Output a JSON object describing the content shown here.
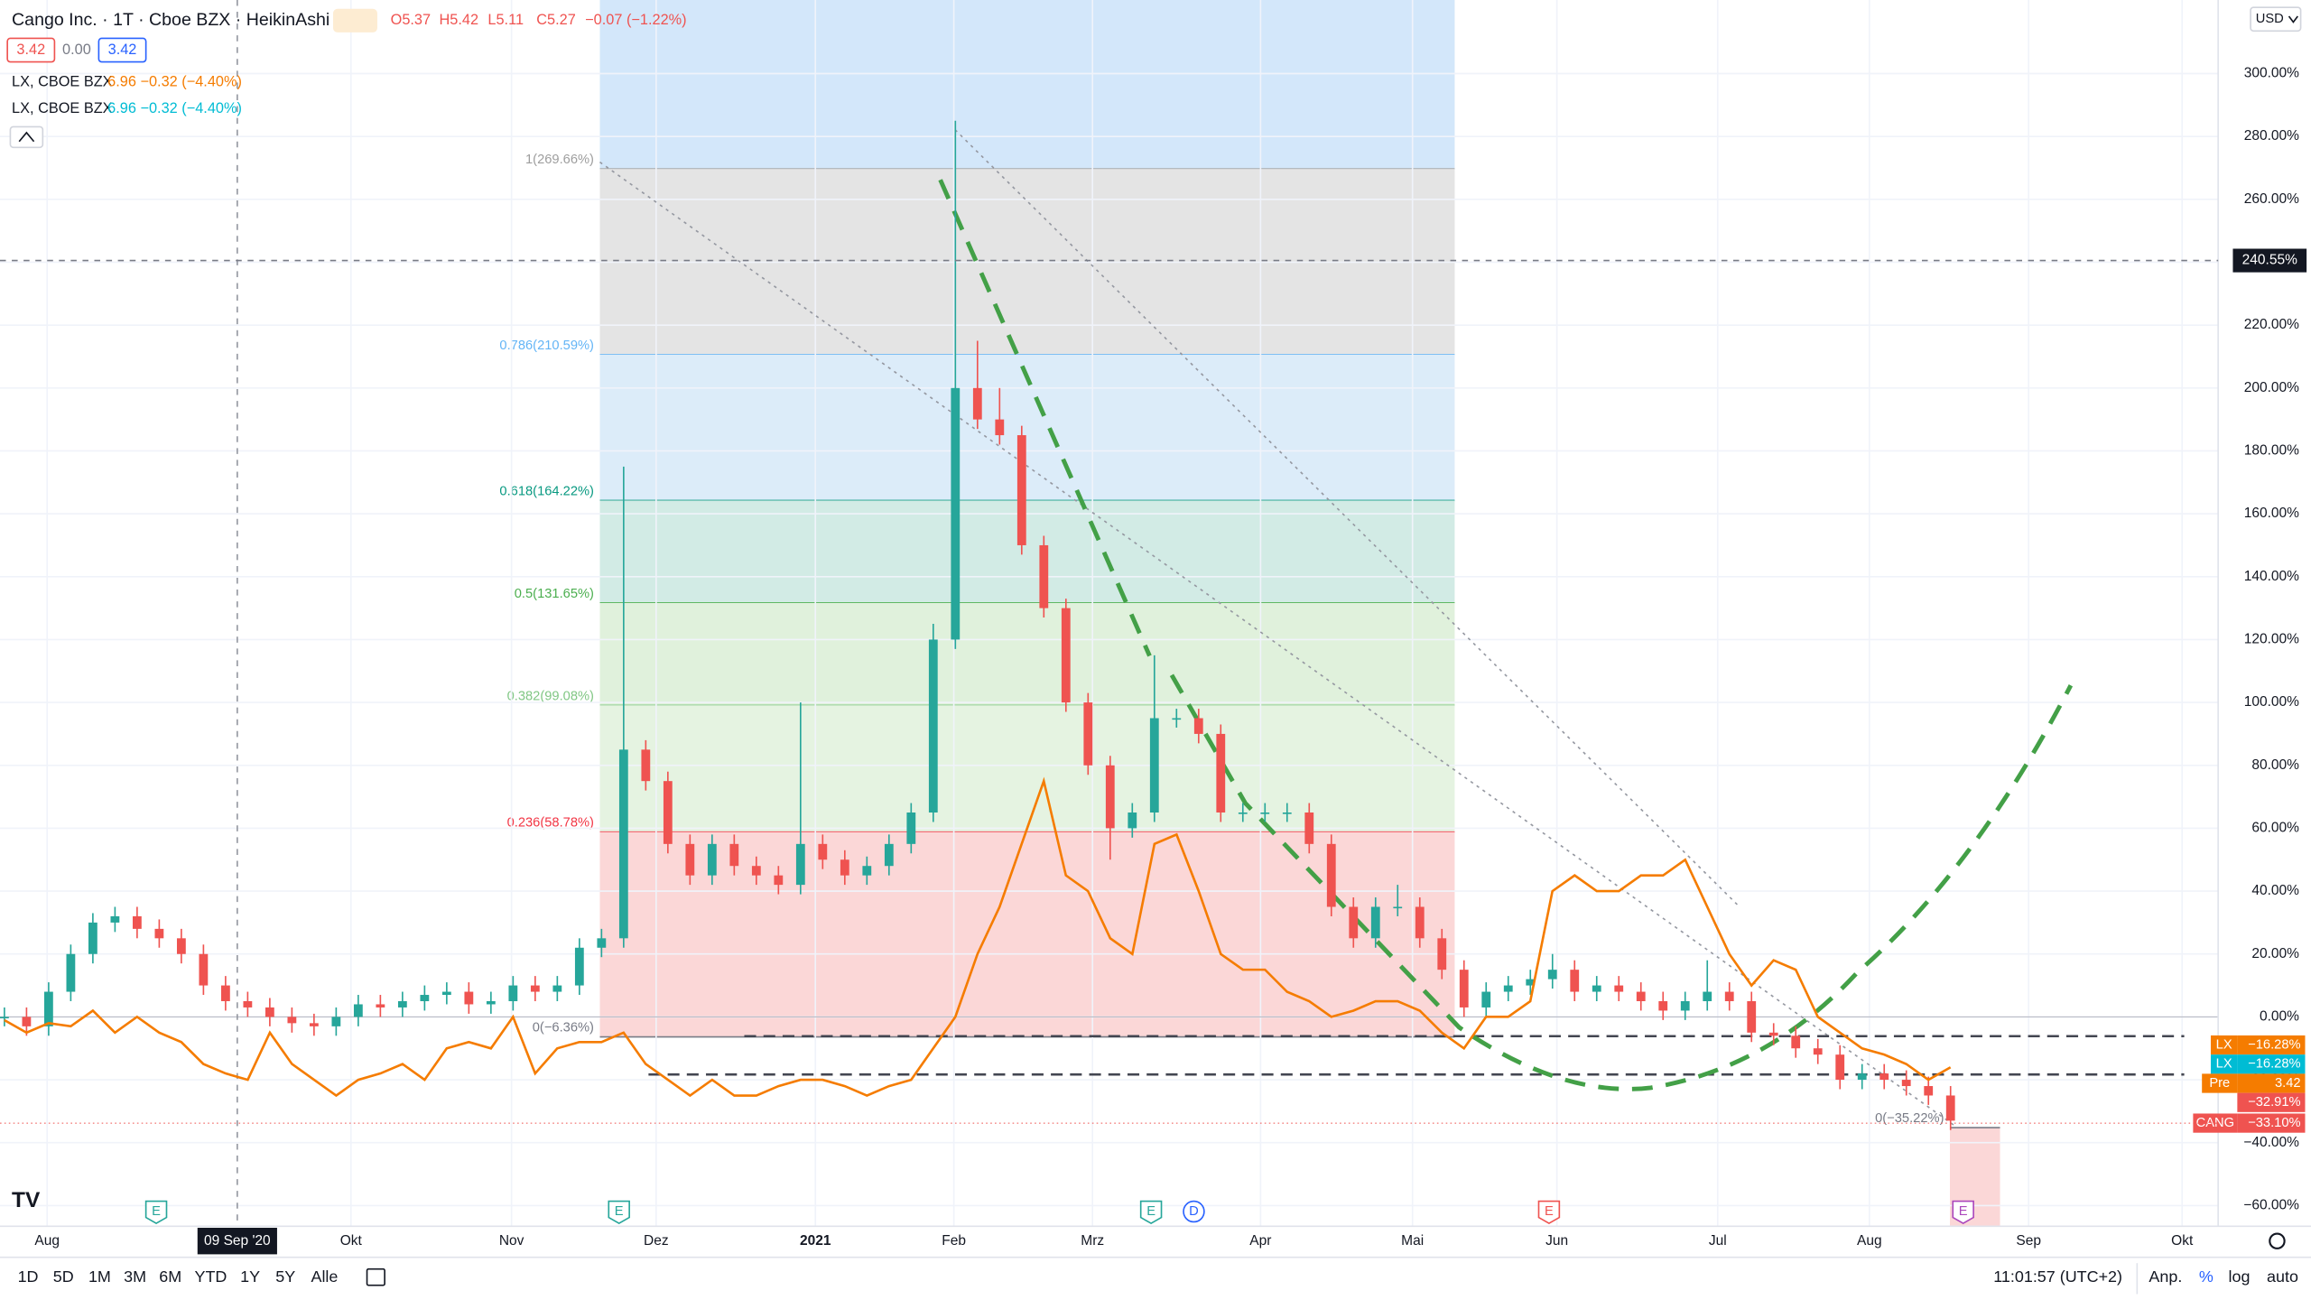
{
  "header": {
    "title": "Cango Inc. · 1T · Cboe BZX · HeikinAshi",
    "ohlc": [
      "O5.37",
      "H5.42",
      "L5.11",
      "C5.27",
      "−0.07 (−1.22%)"
    ],
    "quote": [
      "3.42",
      "0.00",
      "3.42"
    ],
    "compare": [
      {
        "name": "LX, CBOE BZX",
        "text": "6.96 −0.32 (−4.40%)",
        "color": "#f57c00"
      },
      {
        "name": "LX, CBOE BZX",
        "text": "6.96 −0.32 (−4.40%)",
        "color": "#00bcd4"
      }
    ],
    "currency": "USD"
  },
  "chart_data": {
    "type": "candlestick",
    "xlim": [
      -0.2,
      100.1
    ],
    "ylim": [
      -66.6,
      323.4
    ],
    "xticks": [
      {
        "value": 1.93,
        "label": "Aug"
      },
      {
        "value": 15.67,
        "label": "Okt"
      },
      {
        "value": 22.93,
        "label": "Nov"
      },
      {
        "value": 29.47,
        "label": "Dez"
      },
      {
        "value": 36.67,
        "label": "2021"
      },
      {
        "value": 42.93,
        "label": "Feb"
      },
      {
        "value": 49.2,
        "label": "Mrz"
      },
      {
        "value": 56.8,
        "label": "Apr"
      },
      {
        "value": 63.67,
        "label": "Mai"
      },
      {
        "value": 70.2,
        "label": "Jun"
      },
      {
        "value": 77.47,
        "label": "Jul"
      },
      {
        "value": 84.33,
        "label": "Aug"
      },
      {
        "value": 91.53,
        "label": "Sep"
      },
      {
        "value": 98.47,
        "label": "Okt"
      }
    ],
    "yticks": [
      {
        "value": -60,
        "label": "−60.00%"
      },
      {
        "value": -40,
        "label": "−40.00%"
      },
      {
        "value": -20,
        "label": "−20.00%"
      },
      {
        "value": 0,
        "label": "0.00%"
      },
      {
        "value": 20,
        "label": "20.00%"
      },
      {
        "value": 40,
        "label": "40.00%"
      },
      {
        "value": 60,
        "label": "60.00%"
      },
      {
        "value": 80,
        "label": "80.00%"
      },
      {
        "value": 100,
        "label": "100.00%"
      },
      {
        "value": 120,
        "label": "120.00%"
      },
      {
        "value": 140,
        "label": "140.00%"
      },
      {
        "value": 160,
        "label": "160.00%"
      },
      {
        "value": 180,
        "label": "180.00%"
      },
      {
        "value": 200,
        "label": "200.00%"
      },
      {
        "value": 220,
        "label": "220.00%"
      },
      {
        "value": 240,
        "label": "240.00%"
      },
      {
        "value": 260,
        "label": "260.00%"
      },
      {
        "value": 280,
        "label": "280.00%"
      },
      {
        "value": 300,
        "label": "300.00%"
      }
    ],
    "grid": true,
    "series": [
      {
        "name": "CANG",
        "type": "candlestick",
        "up_color": "#26a69a",
        "down_color": "#ef5350",
        "open": [
          0,
          0,
          -3,
          8,
          20,
          30,
          32,
          28,
          25,
          20,
          10,
          5,
          3,
          0,
          -2,
          -3,
          0,
          4,
          3,
          5,
          7,
          8,
          4,
          5,
          10,
          8,
          10,
          22,
          25,
          85,
          75,
          55,
          45,
          55,
          48,
          45,
          42,
          55,
          50,
          45,
          48,
          55,
          65,
          120,
          200,
          190,
          185,
          150,
          130,
          100,
          80,
          60,
          65,
          95,
          95,
          90,
          65,
          65,
          65,
          65,
          55,
          35,
          25,
          35,
          35,
          25,
          15,
          3,
          8,
          10,
          12,
          15,
          8,
          10,
          8,
          5,
          2,
          5,
          8,
          5,
          -5,
          -6,
          -10,
          -12,
          -20,
          -18,
          -20,
          -22,
          -25
        ],
        "high": [
          3,
          3,
          11,
          23,
          33,
          35,
          35,
          31,
          28,
          23,
          13,
          8,
          6,
          3,
          1,
          3,
          7,
          7,
          8,
          10,
          11,
          11,
          8,
          13,
          13,
          13,
          25,
          28,
          175,
          88,
          78,
          58,
          58,
          58,
          51,
          48,
          100,
          58,
          53,
          51,
          58,
          68,
          125,
          285,
          215,
          200,
          188,
          153,
          133,
          103,
          83,
          68,
          115,
          98,
          98,
          93,
          68,
          68,
          68,
          68,
          58,
          38,
          38,
          42,
          38,
          28,
          18,
          11,
          13,
          15,
          20,
          18,
          13,
          13,
          11,
          8,
          8,
          18,
          11,
          8,
          -2,
          -3,
          -7,
          -9,
          -15,
          -15,
          -17,
          -19,
          -22
        ],
        "low": [
          -3,
          -6,
          -6,
          5,
          17,
          27,
          25,
          22,
          17,
          7,
          2,
          0,
          -3,
          -5,
          -6,
          -6,
          -3,
          0,
          0,
          2,
          4,
          1,
          1,
          2,
          5,
          5,
          7,
          19,
          22,
          72,
          52,
          42,
          42,
          45,
          42,
          39,
          39,
          47,
          42,
          42,
          45,
          52,
          62,
          117,
          187,
          182,
          147,
          127,
          97,
          77,
          50,
          57,
          62,
          92,
          87,
          62,
          62,
          62,
          62,
          52,
          32,
          22,
          22,
          32,
          22,
          12,
          0,
          0,
          5,
          7,
          9,
          5,
          5,
          5,
          2,
          -1,
          -1,
          2,
          2,
          -8,
          -9,
          -13,
          -15,
          -23,
          -23,
          -23,
          -25,
          -28,
          -36
        ],
        "close": [
          0,
          -3,
          8,
          20,
          30,
          32,
          28,
          25,
          20,
          10,
          5,
          3,
          0,
          -2,
          -3,
          0,
          4,
          3,
          5,
          7,
          8,
          4,
          5,
          10,
          8,
          10,
          22,
          25,
          85,
          75,
          55,
          45,
          55,
          48,
          45,
          42,
          55,
          50,
          45,
          48,
          55,
          65,
          120,
          200,
          190,
          185,
          150,
          130,
          100,
          80,
          60,
          65,
          95,
          95,
          90,
          65,
          65,
          65,
          65,
          55,
          35,
          25,
          35,
          35,
          25,
          15,
          3,
          8,
          10,
          12,
          15,
          8,
          10,
          8,
          5,
          2,
          5,
          8,
          5,
          -5,
          -6,
          -10,
          -12,
          -20,
          -18,
          -20,
          -22,
          -25,
          -33
        ]
      },
      {
        "name": "LX",
        "type": "line",
        "color": "#f57c00",
        "values": [
          -1,
          -5,
          -2,
          -3,
          2,
          -5,
          0,
          -5,
          -8,
          -15,
          -18,
          -20,
          -5,
          -15,
          -20,
          -25,
          -20,
          -18,
          -15,
          -20,
          -10,
          -8,
          -10,
          0,
          -18,
          -10,
          -8,
          -8,
          -5,
          -15,
          -20,
          -25,
          -20,
          -25,
          -25,
          -22,
          -20,
          -20,
          -22,
          -25,
          -22,
          -20,
          -10,
          0,
          20,
          35,
          55,
          75,
          45,
          40,
          25,
          20,
          55,
          58,
          40,
          20,
          15,
          15,
          8,
          5,
          0,
          2,
          5,
          5,
          2,
          -5,
          -10,
          0,
          0,
          5,
          40,
          45,
          40,
          40,
          45,
          45,
          50,
          35,
          20,
          10,
          18,
          15,
          0,
          -5,
          -10,
          -12,
          -15,
          -20,
          -16
        ]
      }
    ],
    "fibonacci": {
      "levels": [
        {
          "value": 269.66,
          "label": "1(269.66%)",
          "color": "#9e9e9e",
          "fill": "#d3e7fa"
        },
        {
          "value": 210.59,
          "label": "0.786(210.59%)",
          "color": "#64b5f6",
          "fill": "#e4e4e4"
        },
        {
          "value": 164.22,
          "label": "0.618(164.22%)",
          "color": "#089981",
          "fill": "#dcecf9"
        },
        {
          "value": 131.65,
          "label": "0.5(131.65%)",
          "color": "#4caf50",
          "fill": "#d2ebe5"
        },
        {
          "value": 99.08,
          "label": "0.382(99.08%)",
          "color": "#81c784",
          "fill": "#e0f1dc"
        },
        {
          "value": 58.78,
          "label": "0.236(58.78%)",
          "color": "#f23645",
          "fill": "#e5f3e1"
        },
        {
          "value": -6.36,
          "label": "0(−6.36%)",
          "color": "#787b86",
          "fill": "#fbd7d7"
        }
      ],
      "second": {
        "value": -35.22,
        "label": "0(−35.22%)"
      }
    },
    "crosshair": {
      "value": 240.55,
      "label": "240.55%",
      "x": 10.53,
      "x_label": "09 Sep '20"
    },
    "price_labels": [
      {
        "tag": "LX",
        "label": "−16.28%",
        "color": "#f57c00"
      },
      {
        "tag": "LX",
        "label": "−16.28%",
        "color": "#00bcd4"
      },
      {
        "tag": "Pre",
        "label": "3.42",
        "color": "#f57c00"
      },
      {
        "tag": null,
        "label": "−32.91%",
        "color": "#ef5350"
      },
      {
        "tag": "CANG",
        "label": "−33.10%",
        "color": "#ef5350"
      }
    ],
    "events": [
      {
        "label": "E",
        "color": "#26a69a"
      },
      {
        "label": "E",
        "color": "#26a69a"
      },
      {
        "label": "E",
        "color": "#26a69a"
      },
      {
        "label": "D",
        "color": "#2962ff"
      },
      {
        "label": "E",
        "color": "#ef5350"
      },
      {
        "label": "E",
        "color": "#ab47bc"
      }
    ]
  },
  "toolbar": {
    "ranges": [
      "1D",
      "5D",
      "1M",
      "3M",
      "6M",
      "YTD",
      "1Y",
      "5Y",
      "Alle"
    ],
    "time": "11:01:57 (UTC+2)",
    "options": [
      "Anp.",
      "%",
      "log",
      "auto"
    ]
  }
}
